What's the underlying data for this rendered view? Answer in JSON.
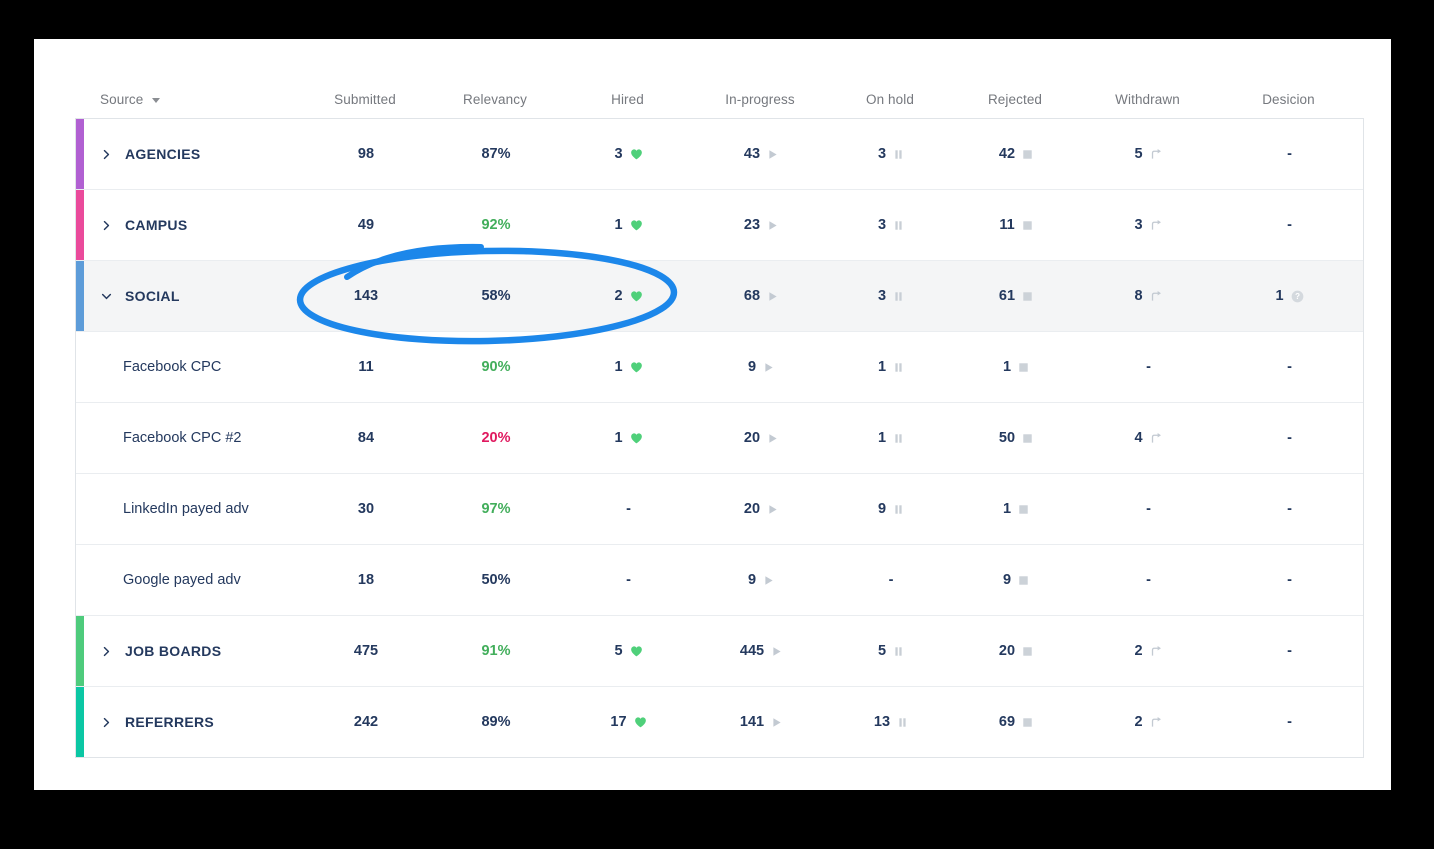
{
  "page": {
    "background": "#000000",
    "card_background": "#ffffff"
  },
  "colors": {
    "navy_text": "#24395e",
    "header_gray": "#75787e",
    "green_text": "#42ae5b",
    "red_text": "#e0195f",
    "heart_green": "#4fd07a",
    "icon_gray": "#c3cad2",
    "highlight_row_bg": "#f4f5f6",
    "row_border": "#eaedf0",
    "table_border": "#e0e4e8",
    "annotation_blue": "#1c87ea"
  },
  "table": {
    "columns": [
      {
        "key": "source",
        "label": "Source",
        "sortable": true
      },
      {
        "key": "submitted",
        "label": "Submitted"
      },
      {
        "key": "relevancy",
        "label": "Relevancy"
      },
      {
        "key": "hired",
        "label": "Hired"
      },
      {
        "key": "in_progress",
        "label": "In-progress"
      },
      {
        "key": "on_hold",
        "label": "On hold"
      },
      {
        "key": "rejected",
        "label": "Rejected"
      },
      {
        "key": "withdrawn",
        "label": "Withdrawn"
      },
      {
        "key": "decision",
        "label": "Desicion"
      }
    ],
    "rows": [
      {
        "source": "AGENCIES",
        "level": 0,
        "expanded": false,
        "bar_color": "#b160d2",
        "highlighted": false,
        "values": [
          {
            "v": "98"
          },
          {
            "v": "87%"
          },
          {
            "v": "3",
            "icon": "heart"
          },
          {
            "v": "43",
            "icon": "play"
          },
          {
            "v": "3",
            "icon": "pause"
          },
          {
            "v": "42",
            "icon": "stop"
          },
          {
            "v": "5",
            "icon": "corner-arrow"
          },
          {
            "v": "-"
          }
        ]
      },
      {
        "source": "CAMPUS",
        "level": 0,
        "expanded": false,
        "bar_color": "#ea4a9b",
        "highlighted": false,
        "values": [
          {
            "v": "49"
          },
          {
            "v": "92%",
            "color": "green"
          },
          {
            "v": "1",
            "icon": "heart"
          },
          {
            "v": "23",
            "icon": "play"
          },
          {
            "v": "3",
            "icon": "pause"
          },
          {
            "v": "11",
            "icon": "stop"
          },
          {
            "v": "3",
            "icon": "corner-arrow"
          },
          {
            "v": "-"
          }
        ]
      },
      {
        "source": "SOCIAL",
        "level": 0,
        "expanded": true,
        "bar_color": "#5d9cd9",
        "highlighted": true,
        "values": [
          {
            "v": "143"
          },
          {
            "v": "58%"
          },
          {
            "v": "2",
            "icon": "heart"
          },
          {
            "v": "68",
            "icon": "play"
          },
          {
            "v": "3",
            "icon": "pause"
          },
          {
            "v": "61",
            "icon": "stop"
          },
          {
            "v": "8",
            "icon": "corner-arrow"
          },
          {
            "v": "1",
            "icon": "question"
          }
        ]
      },
      {
        "source": "Facebook CPC",
        "level": 1,
        "highlighted": false,
        "values": [
          {
            "v": "11"
          },
          {
            "v": "90%",
            "color": "green"
          },
          {
            "v": "1",
            "icon": "heart"
          },
          {
            "v": "9",
            "icon": "play"
          },
          {
            "v": "1",
            "icon": "pause"
          },
          {
            "v": "1",
            "icon": "stop"
          },
          {
            "v": "-"
          },
          {
            "v": "-"
          }
        ]
      },
      {
        "source": "Facebook CPC #2",
        "level": 1,
        "highlighted": false,
        "values": [
          {
            "v": "84"
          },
          {
            "v": "20%",
            "color": "red"
          },
          {
            "v": "1",
            "icon": "heart"
          },
          {
            "v": "20",
            "icon": "play"
          },
          {
            "v": "1",
            "icon": "pause"
          },
          {
            "v": "50",
            "icon": "stop"
          },
          {
            "v": "4",
            "icon": "corner-arrow"
          },
          {
            "v": "-"
          }
        ]
      },
      {
        "source": "LinkedIn payed adv",
        "level": 1,
        "highlighted": false,
        "values": [
          {
            "v": "30"
          },
          {
            "v": "97%",
            "color": "green"
          },
          {
            "v": "-"
          },
          {
            "v": "20",
            "icon": "play"
          },
          {
            "v": "9",
            "icon": "pause"
          },
          {
            "v": "1",
            "icon": "stop"
          },
          {
            "v": "-"
          },
          {
            "v": "-"
          }
        ]
      },
      {
        "source": "Google payed adv",
        "level": 1,
        "highlighted": false,
        "values": [
          {
            "v": "18"
          },
          {
            "v": "50%"
          },
          {
            "v": "-"
          },
          {
            "v": "9",
            "icon": "play"
          },
          {
            "v": "-"
          },
          {
            "v": "9",
            "icon": "stop"
          },
          {
            "v": "-"
          },
          {
            "v": "-"
          }
        ]
      },
      {
        "source": "JOB BOARDS",
        "level": 0,
        "expanded": false,
        "bar_color": "#4ecb7c",
        "highlighted": false,
        "values": [
          {
            "v": "475"
          },
          {
            "v": "91%",
            "color": "green"
          },
          {
            "v": "5",
            "icon": "heart"
          },
          {
            "v": "445",
            "icon": "play"
          },
          {
            "v": "5",
            "icon": "pause"
          },
          {
            "v": "20",
            "icon": "stop"
          },
          {
            "v": "2",
            "icon": "corner-arrow"
          },
          {
            "v": "-"
          }
        ]
      },
      {
        "source": "REFERRERS",
        "level": 0,
        "expanded": false,
        "bar_color": "#0bc7a4",
        "highlighted": false,
        "values": [
          {
            "v": "242"
          },
          {
            "v": "89%"
          },
          {
            "v": "17",
            "icon": "heart"
          },
          {
            "v": "141",
            "icon": "play"
          },
          {
            "v": "13",
            "icon": "pause"
          },
          {
            "v": "69",
            "icon": "stop"
          },
          {
            "v": "2",
            "icon": "corner-arrow"
          },
          {
            "v": "-"
          }
        ]
      }
    ]
  },
  "annotation": {
    "type": "hand-drawn-ellipse",
    "color": "#1c87ea",
    "circled_values": [
      "143",
      "58%",
      "2 hired"
    ],
    "circled_row": "SOCIAL"
  }
}
